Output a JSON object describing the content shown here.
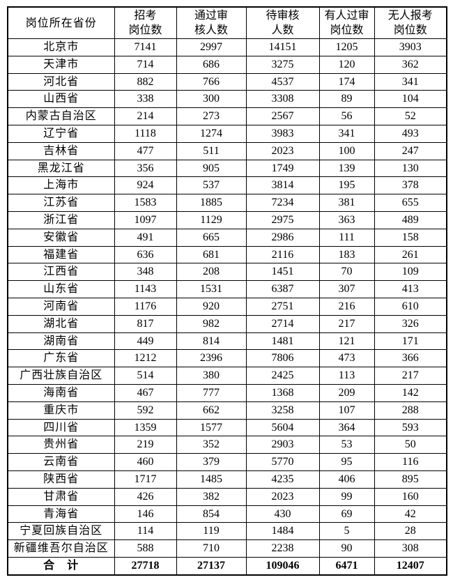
{
  "table": {
    "columns": [
      "岗位所在省份",
      "招考\n岗位数",
      "通过审\n核人数",
      "待审核\n人数",
      "有人过审\n岗位数",
      "无人报考\n岗位数"
    ],
    "rows": [
      [
        "北京市",
        7141,
        2997,
        14151,
        1205,
        3903
      ],
      [
        "天津市",
        714,
        686,
        3275,
        120,
        362
      ],
      [
        "河北省",
        882,
        766,
        4537,
        174,
        341
      ],
      [
        "山西省",
        338,
        300,
        3308,
        89,
        104
      ],
      [
        "内蒙古自治区",
        214,
        273,
        2567,
        56,
        52
      ],
      [
        "辽宁省",
        1118,
        1274,
        3983,
        341,
        493
      ],
      [
        "吉林省",
        477,
        511,
        2023,
        100,
        247
      ],
      [
        "黑龙江省",
        356,
        905,
        1749,
        139,
        130
      ],
      [
        "上海市",
        924,
        537,
        3814,
        195,
        378
      ],
      [
        "江苏省",
        1583,
        1885,
        7234,
        381,
        655
      ],
      [
        "浙江省",
        1097,
        1129,
        2975,
        363,
        489
      ],
      [
        "安徽省",
        491,
        665,
        2986,
        111,
        158
      ],
      [
        "福建省",
        636,
        681,
        2116,
        183,
        261
      ],
      [
        "江西省",
        348,
        208,
        1451,
        70,
        109
      ],
      [
        "山东省",
        1143,
        1531,
        6387,
        307,
        413
      ],
      [
        "河南省",
        1176,
        920,
        2751,
        216,
        610
      ],
      [
        "湖北省",
        817,
        982,
        2714,
        217,
        326
      ],
      [
        "湖南省",
        449,
        814,
        1481,
        121,
        171
      ],
      [
        "广东省",
        1212,
        2396,
        7806,
        473,
        366
      ],
      [
        "广西壮族自治区",
        514,
        380,
        2425,
        113,
        217
      ],
      [
        "海南省",
        467,
        777,
        1368,
        209,
        142
      ],
      [
        "重庆市",
        592,
        662,
        3258,
        107,
        288
      ],
      [
        "四川省",
        1359,
        1577,
        5604,
        364,
        593
      ],
      [
        "贵州省",
        219,
        352,
        2903,
        53,
        50
      ],
      [
        "云南省",
        460,
        379,
        5770,
        95,
        116
      ],
      [
        "陕西省",
        1717,
        1485,
        4235,
        406,
        895
      ],
      [
        "甘肃省",
        426,
        382,
        2023,
        99,
        160
      ],
      [
        "青海省",
        146,
        854,
        430,
        69,
        42
      ],
      [
        "宁夏回族自治区",
        114,
        119,
        1484,
        5,
        28
      ],
      [
        "新疆维吾尔自治区",
        588,
        710,
        2238,
        90,
        308
      ]
    ],
    "total_row": [
      "合　计",
      27718,
      27137,
      109046,
      6471,
      12407
    ]
  }
}
